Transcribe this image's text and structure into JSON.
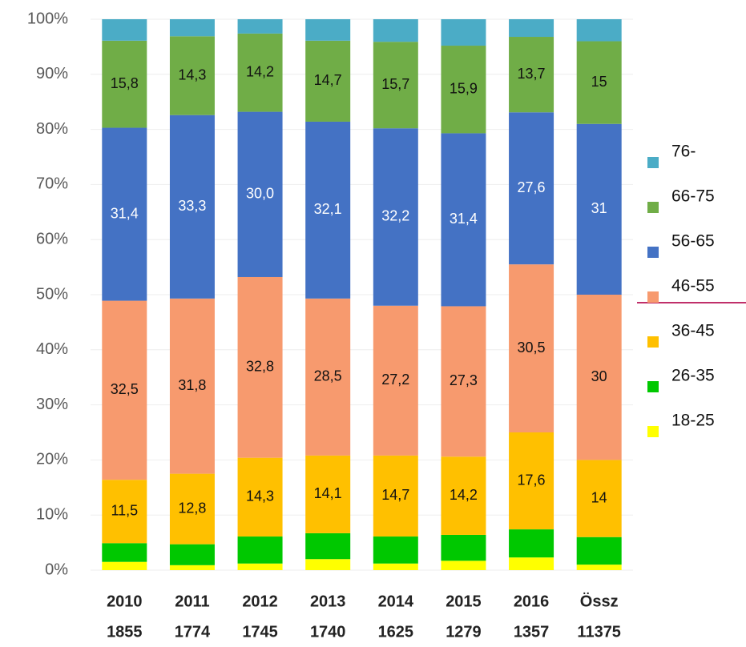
{
  "chart_data": {
    "type": "stacked_bar_100",
    "categories": [
      "2010",
      "2011",
      "2012",
      "2013",
      "2014",
      "2015",
      "2016",
      "Össz"
    ],
    "sample_sizes": [
      1855,
      1774,
      1745,
      1740,
      1625,
      1279,
      1357,
      11375
    ],
    "series": [
      {
        "name": "18-25",
        "color": "#ffff00",
        "values": [
          1.5,
          0.9,
          1.2,
          2.0,
          1.2,
          1.7,
          2.3,
          1.0
        ]
      },
      {
        "name": "26-35",
        "color": "#00c800",
        "values": [
          3.4,
          3.8,
          4.9,
          4.7,
          4.9,
          4.7,
          5.1,
          5.0
        ]
      },
      {
        "name": "36-45",
        "color": "#ffc000",
        "values": [
          11.5,
          12.8,
          14.3,
          14.1,
          14.7,
          14.2,
          17.6,
          14
        ],
        "value_labels": [
          "11,5",
          "12,8",
          "14,3",
          "14,1",
          "14,7",
          "14,2",
          "17,6",
          "14"
        ]
      },
      {
        "name": "46-55",
        "color": "#f79a6e",
        "values": [
          32.5,
          31.8,
          32.8,
          28.5,
          27.2,
          27.3,
          30.5,
          30
        ],
        "value_labels": [
          "32,5",
          "31,8",
          "32,8",
          "28,5",
          "27,2",
          "27,3",
          "30,5",
          "30"
        ]
      },
      {
        "name": "56-65",
        "color": "#4472c4",
        "values": [
          31.4,
          33.3,
          30.0,
          32.1,
          32.2,
          31.4,
          27.6,
          31
        ],
        "value_labels": [
          "31,4",
          "33,3",
          "30,0",
          "32,1",
          "32,2",
          "31,4",
          "27,6",
          "31"
        ]
      },
      {
        "name": "66-75",
        "color": "#70ad47",
        "values": [
          15.8,
          14.3,
          14.2,
          14.7,
          15.7,
          15.9,
          13.7,
          15
        ],
        "value_labels": [
          "15,8",
          "14,3",
          "14,2",
          "14,7",
          "15,7",
          "15,9",
          "13,7",
          "15"
        ]
      },
      {
        "name": "76-",
        "color": "#4bacc6",
        "values": [
          3.9,
          3.1,
          2.6,
          3.9,
          4.1,
          4.8,
          3.2,
          4.0
        ]
      }
    ],
    "ylim": [
      0,
      100
    ],
    "yticks": [
      {
        "value": 0,
        "label": "0%"
      },
      {
        "value": 10,
        "label": "10%"
      },
      {
        "value": 20,
        "label": "20%"
      },
      {
        "value": 30,
        "label": "30%"
      },
      {
        "value": 40,
        "label": "40%"
      },
      {
        "value": 50,
        "label": "50%"
      },
      {
        "value": 60,
        "label": "60%"
      },
      {
        "value": 70,
        "label": "70%"
      },
      {
        "value": 80,
        "label": "80%"
      },
      {
        "value": 90,
        "label": "90%"
      },
      {
        "value": 100,
        "label": "100%"
      }
    ],
    "grid": true,
    "legend": "right"
  }
}
